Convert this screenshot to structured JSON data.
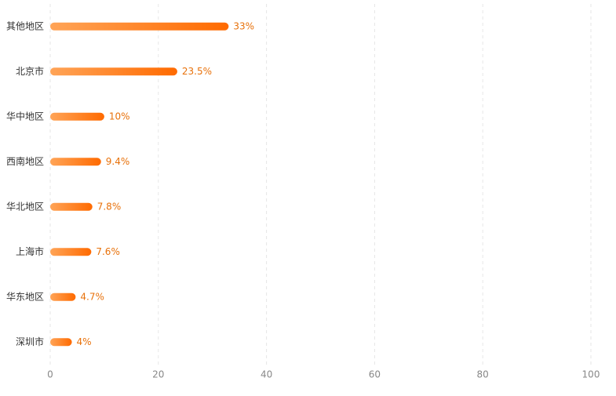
{
  "chart_data": {
    "type": "hbar",
    "categories": [
      "其他地区",
      "北京市",
      "华中地区",
      "西南地区",
      "华北地区",
      "上海市",
      "华东地区",
      "深圳市"
    ],
    "values": [
      33,
      23.5,
      10,
      9.4,
      7.8,
      7.6,
      4.7,
      4
    ],
    "value_labels": [
      "33%",
      "23.5%",
      "10%",
      "9.4%",
      "7.8%",
      "7.6%",
      "4.7%",
      "4%"
    ],
    "gradient": [
      "#ffa457",
      "#ff6a00"
    ],
    "label_color": "#e8710a",
    "xlim": [
      0,
      100
    ],
    "xticks": [
      0,
      20,
      40,
      60,
      80,
      100
    ],
    "grid": true
  }
}
